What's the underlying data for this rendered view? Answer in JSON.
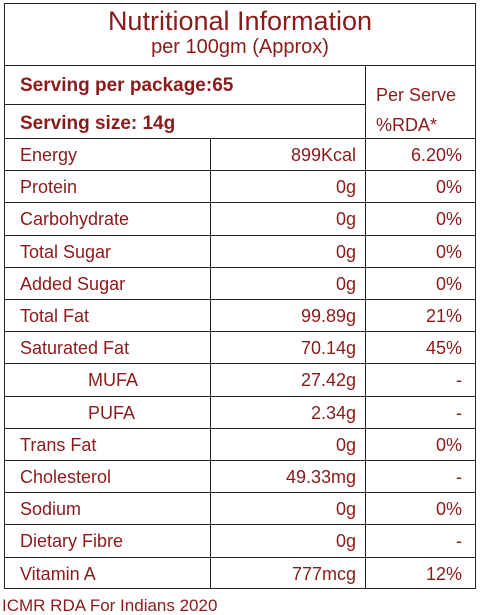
{
  "header": {
    "title": "Nutritional Information",
    "subtitle": "per 100gm (Approx)"
  },
  "serving": {
    "per_package": "Serving per package:65",
    "size": "Serving size: 14g",
    "rda_header": [
      "Per Serve",
      "%RDA*"
    ]
  },
  "table": {
    "rows": [
      [
        "Energy",
        "899Kcal",
        "6.20%"
      ],
      [
        "Protein",
        "0g",
        "0%"
      ],
      [
        "Carbohydrate",
        "0g",
        "0%"
      ],
      [
        "Total Sugar",
        "0g",
        "0%"
      ],
      [
        "Added Sugar",
        "0g",
        "0%"
      ],
      [
        "Total Fat",
        "99.89g",
        "21%"
      ],
      [
        "Saturated Fat",
        "70.14g",
        "45%"
      ],
      [
        "MUFA",
        "27.42g",
        "-"
      ],
      [
        "PUFA",
        "2.34g",
        "-"
      ],
      [
        "Trans Fat",
        "0g",
        "0%"
      ],
      [
        "Cholesterol",
        "49.33mg",
        "-"
      ],
      [
        "Sodium",
        "0g",
        "0%"
      ],
      [
        "Dietary Fibre",
        "0g",
        "-"
      ],
      [
        "Vitamin A",
        "777mcg",
        "12%"
      ]
    ]
  },
  "footer": "ICMR RDA For Indians 2020"
}
